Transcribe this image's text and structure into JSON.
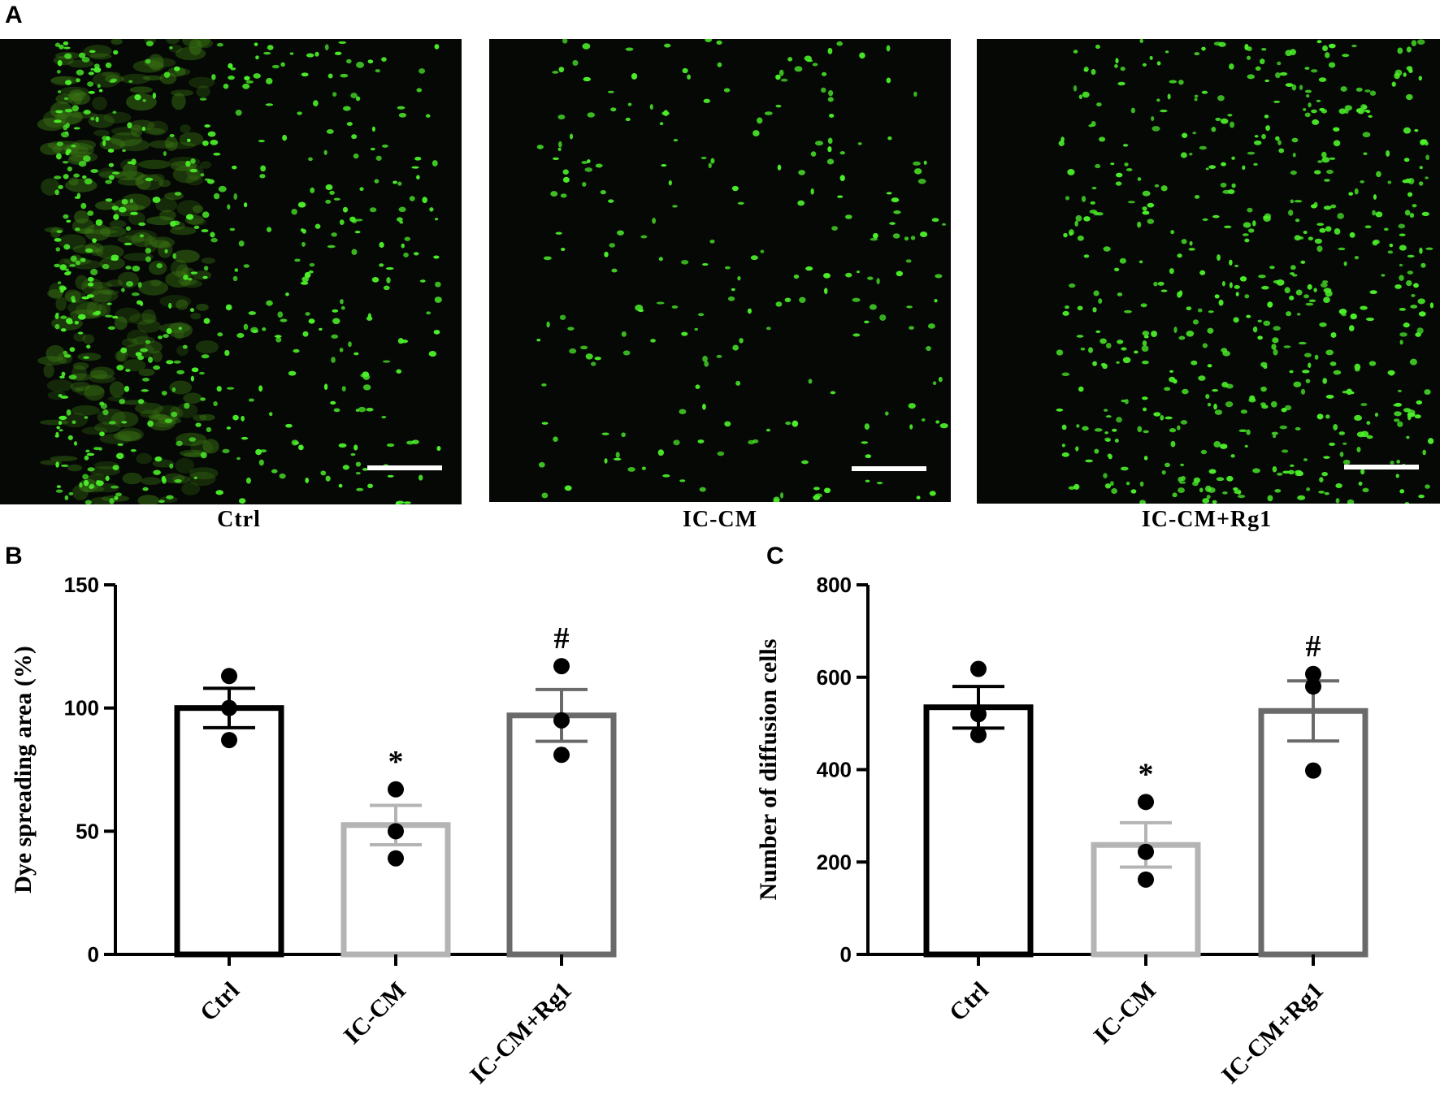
{
  "panel_letters": {
    "a": "A",
    "b": "B",
    "c": "C"
  },
  "micrographs": [
    {
      "label": "Ctrl",
      "dye_color": "#4cf02a",
      "density": "high"
    },
    {
      "label": "IC-CM",
      "dye_color": "#4cf02a",
      "density": "low"
    },
    {
      "label": "IC-CM+Rg1",
      "dye_color": "#4cf02a",
      "density": "medium"
    }
  ],
  "chart_data": [
    {
      "type": "bar",
      "panel": "B",
      "categories": [
        "Ctrl",
        "IC-CM",
        "IC-CM+Rg1"
      ],
      "values": [
        100,
        52.5,
        97
      ],
      "errors": [
        8,
        8,
        10.5
      ],
      "points": [
        [
          113,
          100,
          87
        ],
        [
          67,
          50,
          39
        ],
        [
          117,
          95,
          81
        ]
      ],
      "significance": [
        "",
        "*",
        "#"
      ],
      "ylabel": "Dye spreading area (%)",
      "ylim": [
        0,
        150
      ],
      "yticks": [
        0,
        50,
        100,
        150
      ],
      "bar_colors": [
        "#000000",
        "#b4b4b4",
        "#6a6a6a"
      ]
    },
    {
      "type": "bar",
      "panel": "C",
      "categories": [
        "Ctrl",
        "IC-CM",
        "IC-CM+Rg1"
      ],
      "values": [
        535,
        237,
        527
      ],
      "errors": [
        45,
        48,
        65
      ],
      "points": [
        [
          618,
          520,
          475
        ],
        [
          330,
          222,
          162
        ],
        [
          607,
          580,
          398
        ]
      ],
      "significance": [
        "",
        "*",
        "#"
      ],
      "ylabel": "Number of diffusion cells",
      "ylim": [
        0,
        800
      ],
      "yticks": [
        0,
        200,
        400,
        600,
        800
      ],
      "bar_colors": [
        "#000000",
        "#b4b4b4",
        "#6a6a6a"
      ]
    }
  ]
}
